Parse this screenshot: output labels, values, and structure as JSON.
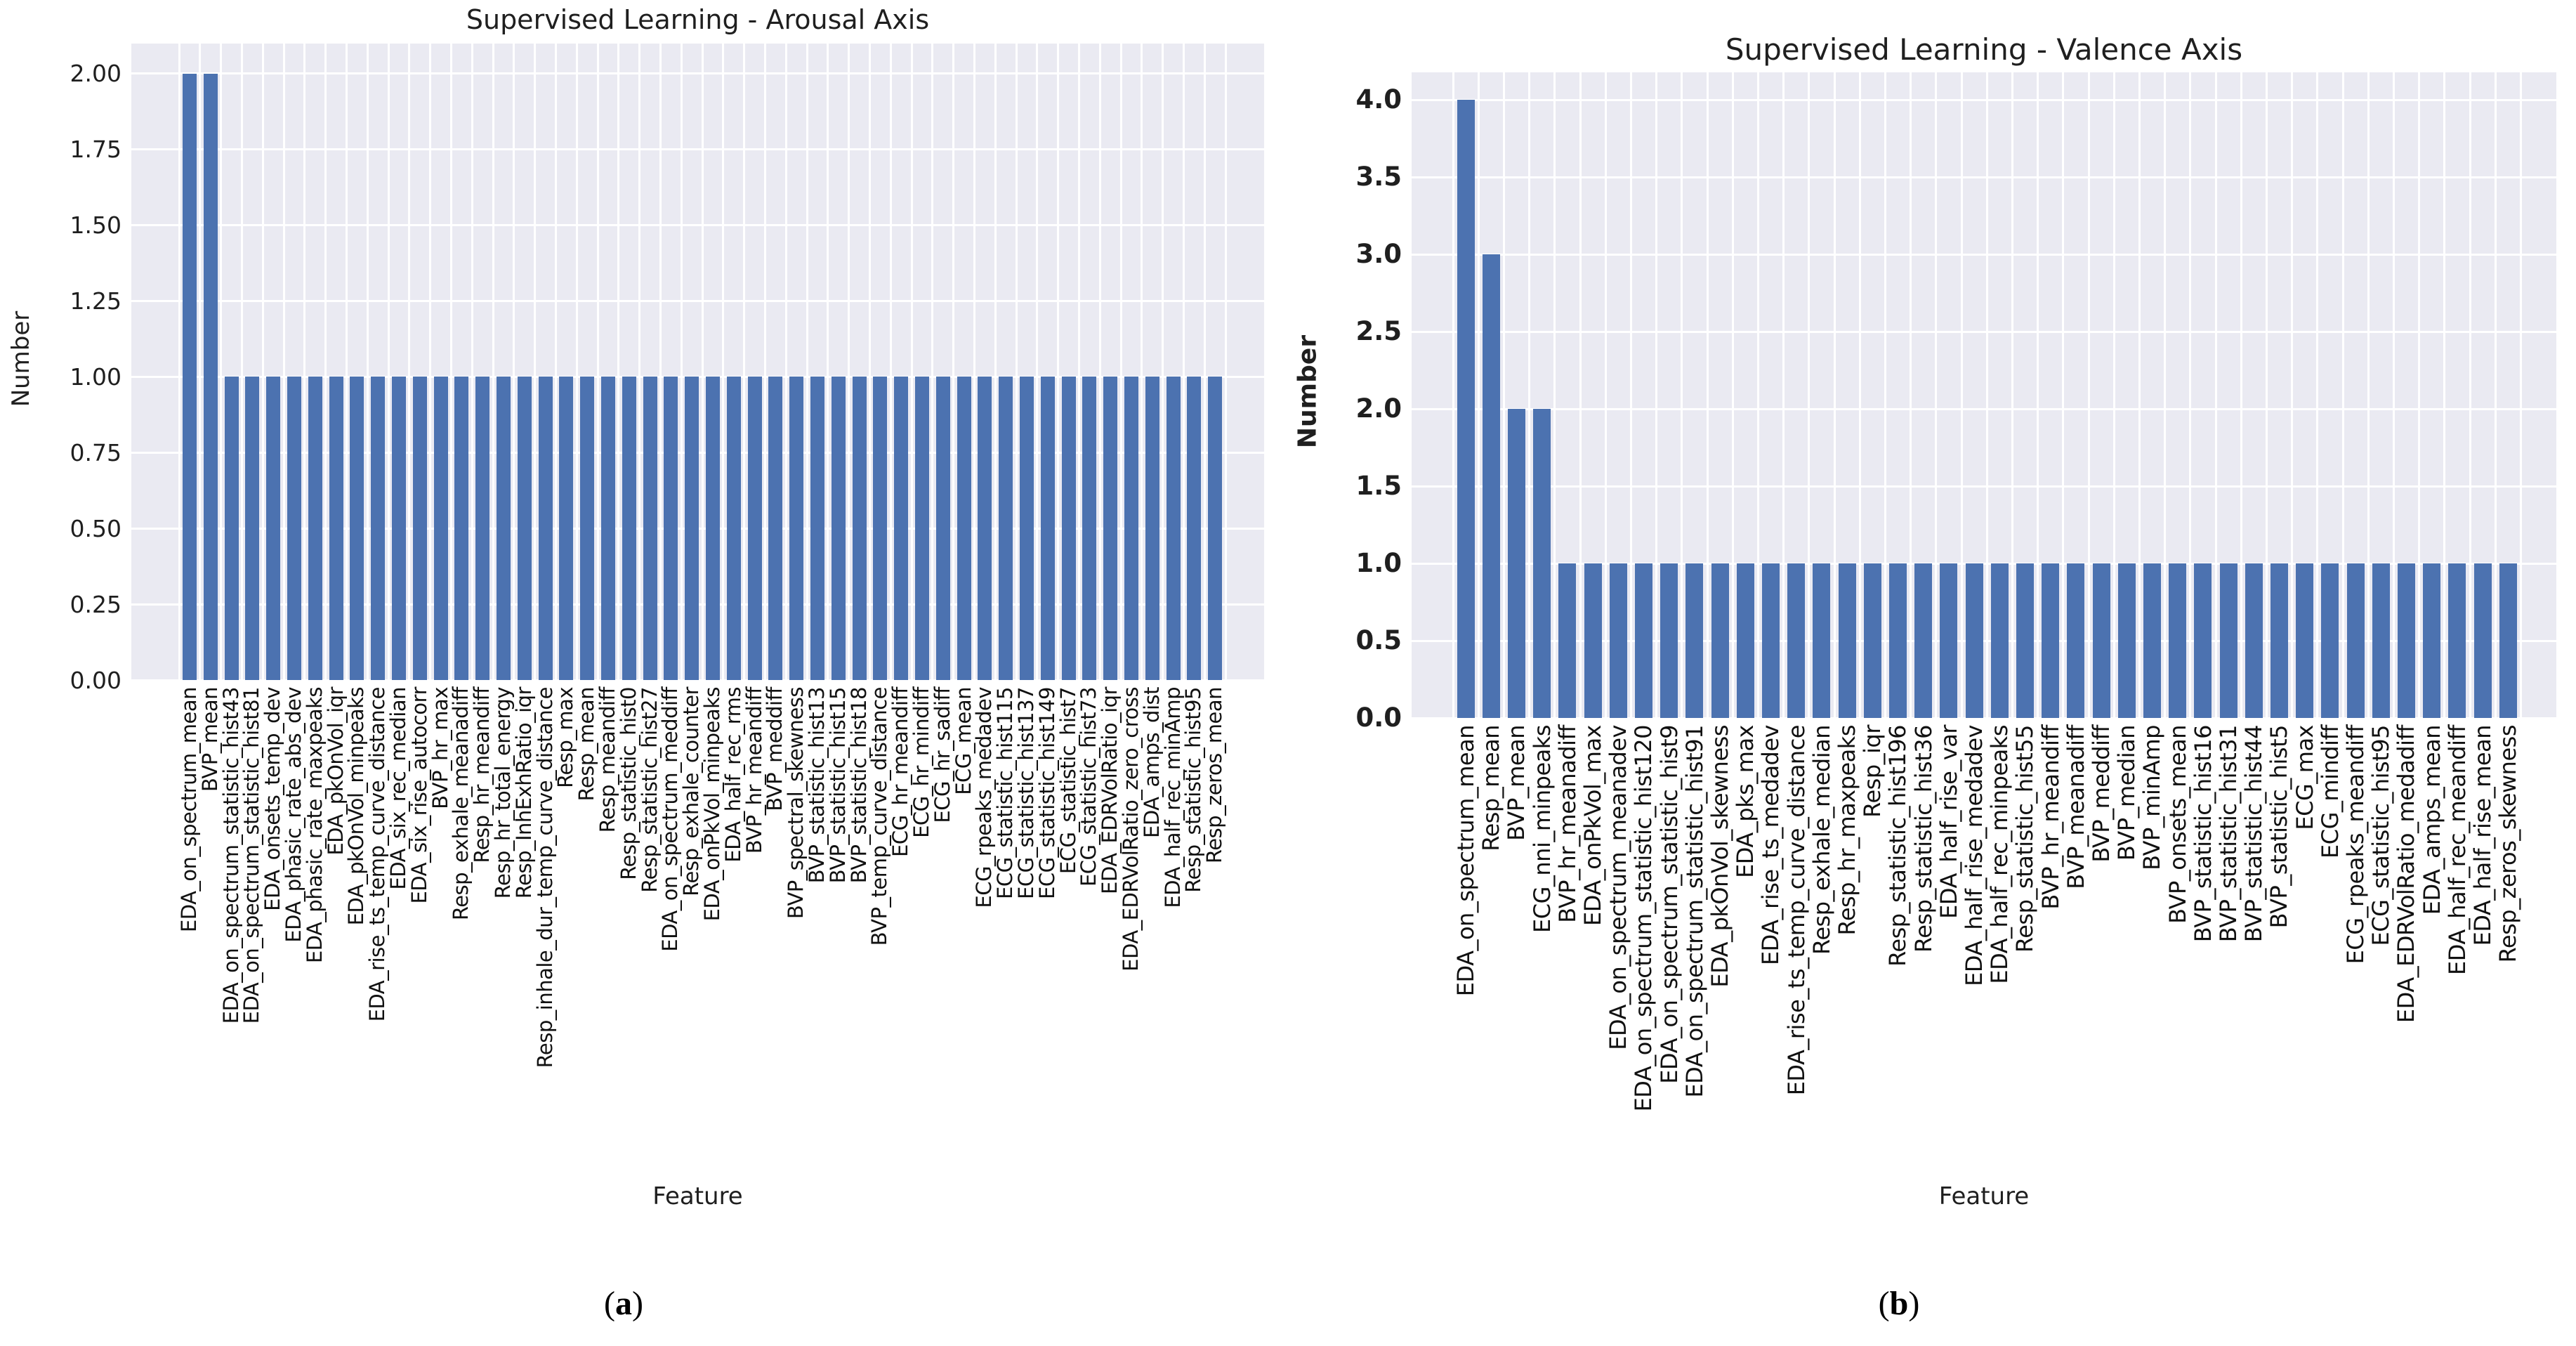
{
  "figure_title": "",
  "colors": {
    "bar": "#4c72b0",
    "plot_background": "#eaeaf2",
    "gridline": "#ffffff",
    "text": "#1f1f1f",
    "page_background": "#ffffff"
  },
  "chart_data": [
    {
      "type": "bar",
      "title": "Supervised Learning - Arousal Axis",
      "xlabel": "Feature",
      "ylabel": "Number",
      "ylim": [
        0,
        2.1
      ],
      "grid": true,
      "legend_position": "none",
      "caption": {
        "open": "(",
        "letter": "a",
        "close": ")"
      },
      "ytick_labels": [
        "0.00",
        "0.25",
        "0.50",
        "0.75",
        "1.00",
        "1.25",
        "1.50",
        "1.75",
        "2.00"
      ],
      "ytick_values": [
        0,
        0.25,
        0.5,
        0.75,
        1.0,
        1.25,
        1.5,
        1.75,
        2.0
      ],
      "categories": [
        "EDA_on_spectrum_mean",
        "BVP_mean",
        "EDA_on_spectrum_statistic_hist43",
        "EDA_on_spectrum_statistic_hist81",
        "EDA_onsets_temp_dev",
        "EDA_phasic_rate_abs_dev",
        "EDA_phasic_rate_maxpeaks",
        "EDA_pkOnVol_iqr",
        "EDA_pkOnVol_minpeaks",
        "EDA_rise_ts_temp_curve_distance",
        "EDA_six_rec_median",
        "EDA_six_rise_autocorr",
        "BVP_hr_max",
        "Resp_exhale_meanadiff",
        "Resp_hr_meandiff",
        "Resp_hr_total_energy",
        "Resp_InhExhRatio_iqr",
        "Resp_inhale_dur_temp_curve_distance",
        "Resp_max",
        "Resp_mean",
        "Resp_meandiff",
        "Resp_statistic_hist0",
        "Resp_statistic_hist27",
        "EDA_on_spectrum_meddiff",
        "Resp_exhale_counter",
        "EDA_onPkVol_minpeaks",
        "EDA_half_rec_rms",
        "BVP_hr_meandiff",
        "BVP_meddiff",
        "BVP_spectral_skewness",
        "BVP_statistic_hist13",
        "BVP_statistic_hist15",
        "BVP_statistic_hist18",
        "BVP_temp_curve_distance",
        "ECG_hr_meandiff",
        "ECG_hr_mindiff",
        "ECG_hr_sadiff",
        "ECG_mean",
        "ECG_rpeaks_medadev",
        "ECG_statistic_hist115",
        "ECG_statistic_hist137",
        "ECG_statistic_hist149",
        "ECG_statistic_hist7",
        "ECG_statistic_hist73",
        "EDA_EDRVolRatio_iqr",
        "EDA_EDRVolRatio_zero_cross",
        "EDA_amps_dist",
        "EDA_half_rec_minAmp",
        "Resp_statistic_hist95",
        "Resp_zeros_mean"
      ],
      "values": [
        2,
        2,
        1,
        1,
        1,
        1,
        1,
        1,
        1,
        1,
        1,
        1,
        1,
        1,
        1,
        1,
        1,
        1,
        1,
        1,
        1,
        1,
        1,
        1,
        1,
        1,
        1,
        1,
        1,
        1,
        1,
        1,
        1,
        1,
        1,
        1,
        1,
        1,
        1,
        1,
        1,
        1,
        1,
        1,
        1,
        1,
        1,
        1,
        1,
        1
      ]
    },
    {
      "type": "bar",
      "title": "Supervised Learning - Valence Axis",
      "xlabel": "Feature",
      "ylabel": "Number",
      "ylim": [
        0,
        4.2
      ],
      "grid": true,
      "legend_position": "none",
      "caption": {
        "open": "(",
        "letter": "b",
        "close": ")"
      },
      "ytick_labels": [
        "0.0",
        "0.5",
        "1.0",
        "1.5",
        "2.0",
        "2.5",
        "3.0",
        "3.5",
        "4.0"
      ],
      "ytick_values": [
        0,
        0.5,
        1.0,
        1.5,
        2.0,
        2.5,
        3.0,
        3.5,
        4.0
      ],
      "categories": [
        "EDA_on_spectrum_mean",
        "Resp_mean",
        "BVP_mean",
        "ECG_nni_minpeaks",
        "BVP_hr_meanadiff",
        "EDA_onPkVol_max",
        "EDA_on_spectrum_meanadev",
        "EDA_on_spectrum_statistic_hist120",
        "EDA_on_spectrum_statistic_hist9",
        "EDA_on_spectrum_statistic_hist91",
        "EDA_pkOnVol_skewness",
        "EDA_pks_max",
        "EDA_rise_ts_medadev",
        "EDA_rise_ts_temp_curve_distance",
        "Resp_exhale_median",
        "Resp_hr_maxpeaks",
        "Resp_iqr",
        "Resp_statistic_hist196",
        "Resp_statistic_hist36",
        "EDA_half_rise_var",
        "EDA_half_rise_medadev",
        "EDA_half_rec_minpeaks",
        "Resp_statistic_hist55",
        "BVP_hr_meandiff",
        "BVP_meanadiff",
        "BVP_meddiff",
        "BVP_median",
        "BVP_minAmp",
        "BVP_onsets_mean",
        "BVP_statistic_hist16",
        "BVP_statistic_hist31",
        "BVP_statistic_hist44",
        "BVP_statistic_hist5",
        "ECG_max",
        "ECG_mindiff",
        "ECG_rpeaks_meandiff",
        "ECG_statistic_hist95",
        "EDA_EDRVolRatio_medadiff",
        "EDA_amps_mean",
        "EDA_half_rec_meandiff",
        "EDA_half_rise_mean",
        "Resp_zeros_skewness"
      ],
      "values": [
        4,
        3,
        2,
        2,
        1,
        1,
        1,
        1,
        1,
        1,
        1,
        1,
        1,
        1,
        1,
        1,
        1,
        1,
        1,
        1,
        1,
        1,
        1,
        1,
        1,
        1,
        1,
        1,
        1,
        1,
        1,
        1,
        1,
        1,
        1,
        1,
        1,
        1,
        1,
        1,
        1,
        1
      ]
    }
  ]
}
